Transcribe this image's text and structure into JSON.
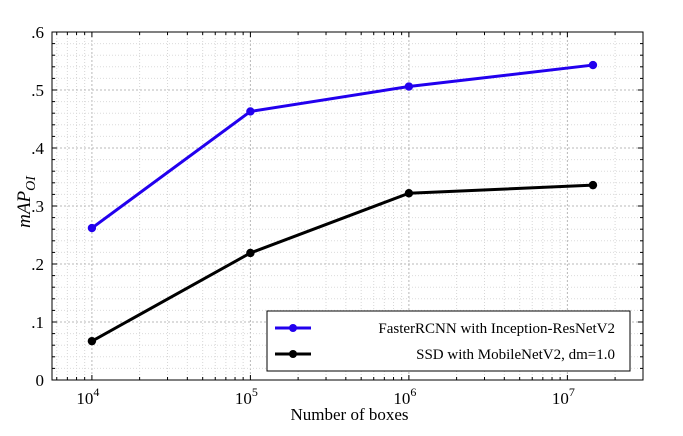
{
  "chart_data": {
    "type": "line",
    "xlabel": "Number of boxes",
    "ylabel_main": "mAP",
    "ylabel_sub": "OI",
    "x_scale": "log",
    "xlim": [
      5600,
      30000000
    ],
    "ylim": [
      0,
      0.6
    ],
    "x_ticks": [
      {
        "value": 10000,
        "base": "10",
        "exp": "4"
      },
      {
        "value": 100000,
        "base": "10",
        "exp": "5"
      },
      {
        "value": 1000000,
        "base": "10",
        "exp": "6"
      },
      {
        "value": 10000000,
        "base": "10",
        "exp": "7"
      }
    ],
    "y_ticks": [
      {
        "value": 0,
        "label": "0"
      },
      {
        "value": 0.1,
        "label": ".1"
      },
      {
        "value": 0.2,
        "label": ".2"
      },
      {
        "value": 0.3,
        "label": ".3"
      },
      {
        "value": 0.4,
        "label": ".4"
      },
      {
        "value": 0.5,
        "label": ".5"
      },
      {
        "value": 0.6,
        "label": ".6"
      }
    ],
    "grid": true,
    "legend_position": "bottom-right",
    "series": [
      {
        "name": "FasterRCNN with Inception-ResNetV2",
        "color": "#2200ee",
        "points": [
          {
            "x": 10000,
            "y": 0.262
          },
          {
            "x": 100000,
            "y": 0.463
          },
          {
            "x": 1000000,
            "y": 0.506
          },
          {
            "x": 14500000,
            "y": 0.543
          }
        ]
      },
      {
        "name": "SSD with MobileNetV2, dm=1.0",
        "color": "#000000",
        "points": [
          {
            "x": 10000,
            "y": 0.067
          },
          {
            "x": 100000,
            "y": 0.219
          },
          {
            "x": 1000000,
            "y": 0.322
          },
          {
            "x": 14500000,
            "y": 0.336
          }
        ]
      }
    ]
  }
}
